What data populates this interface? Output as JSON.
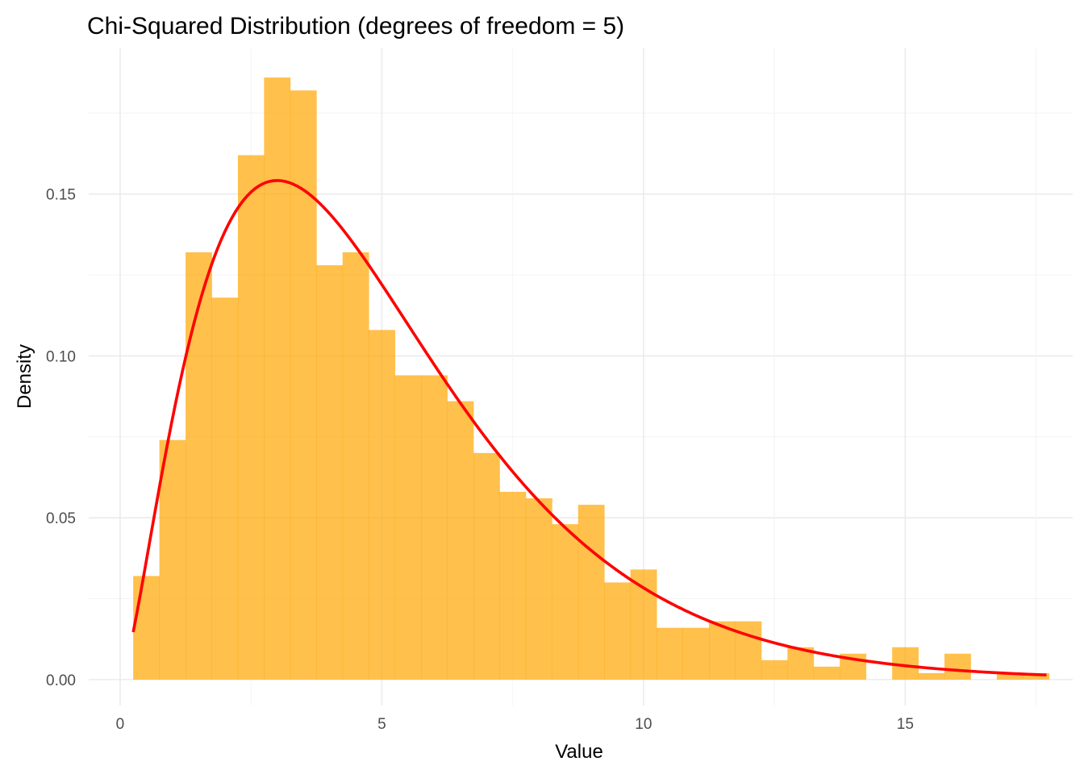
{
  "chart_data": {
    "type": "bar",
    "title": "Chi-Squared Distribution (degrees of freedom = 5)",
    "xlabel": "Value",
    "ylabel": "Density",
    "xlim": [
      -0.6,
      18.2
    ],
    "ylim": [
      -0.008,
      0.195
    ],
    "x_ticks": [
      0,
      5,
      10,
      15
    ],
    "x_tick_labels": [
      "0",
      "5",
      "10",
      "15"
    ],
    "y_ticks": [
      0.0,
      0.05,
      0.1,
      0.15
    ],
    "y_tick_labels": [
      "0.00",
      "0.05",
      "0.10",
      "0.15"
    ],
    "grid": true,
    "colors": {
      "histogram": "#FFA500",
      "curve": "#FF0000"
    },
    "histogram": {
      "bin_width": 0.5,
      "start": 0.25,
      "densities": [
        0.032,
        0.074,
        0.132,
        0.118,
        0.162,
        0.186,
        0.182,
        0.128,
        0.132,
        0.108,
        0.094,
        0.094,
        0.086,
        0.07,
        0.058,
        0.056,
        0.048,
        0.054,
        0.03,
        0.034,
        0.016,
        0.016,
        0.018,
        0.018,
        0.006,
        0.01,
        0.004,
        0.008,
        0.0,
        0.01,
        0.002,
        0.008,
        0.0,
        0.002,
        0.002
      ]
    },
    "curve": {
      "name": "chi-squared density, df = 5",
      "df": 5,
      "x_range": [
        0.25,
        17.7
      ]
    }
  }
}
